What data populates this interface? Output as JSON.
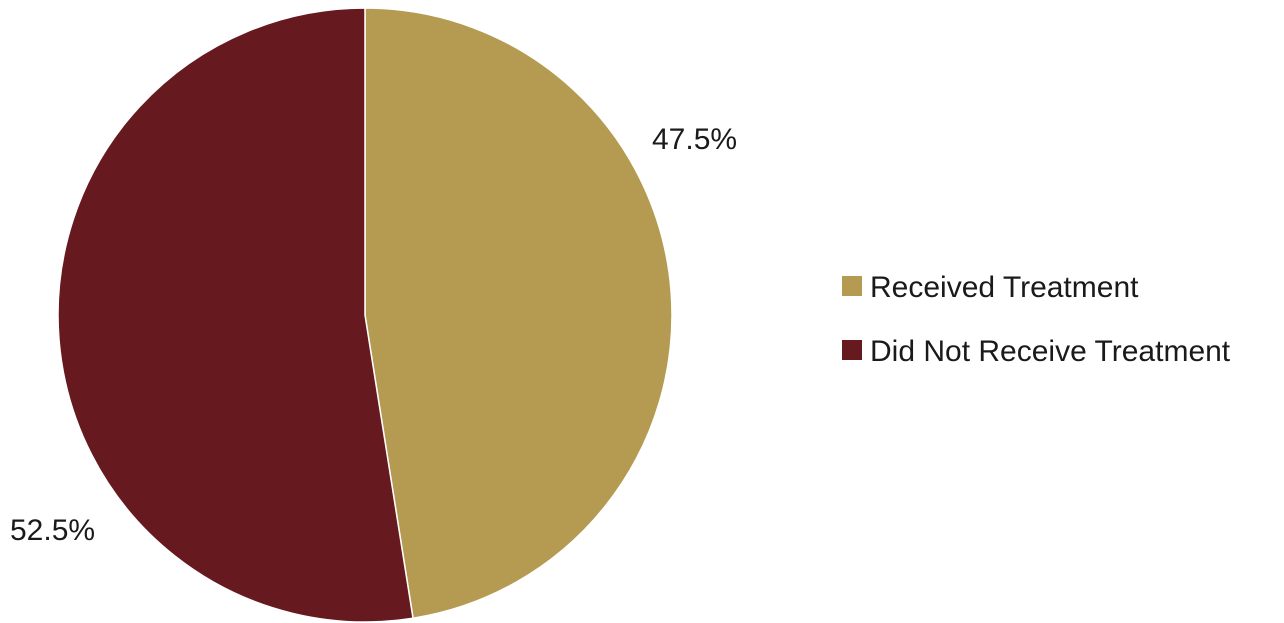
{
  "chart_data": {
    "type": "pie",
    "categories": [
      "Received Treatment",
      "Did Not Receive Treatment"
    ],
    "values": [
      47.5,
      52.5
    ],
    "data_labels": [
      "47.5%",
      "52.5%"
    ],
    "colors": [
      "#b59a52",
      "#66191e"
    ],
    "start_angle": "12 o'clock",
    "direction": "clockwise",
    "legend": "right"
  }
}
